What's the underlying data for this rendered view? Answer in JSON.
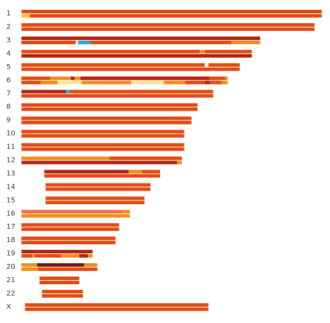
{
  "chart_data": {
    "type": "bar",
    "title": "",
    "xlabel": "",
    "ylabel": "",
    "grid": false,
    "legend": "none",
    "units": "Mb",
    "colors": {
      "orange_red": "#e04a0f",
      "dark_red": "#b3200e",
      "orange": "#f28c1a",
      "yellow": "#f7c430",
      "pale_yellow": "#f8e49a",
      "blue": "#2aa6de",
      "maroon": "#7a1208",
      "salmon": "#f26a4a"
    },
    "chromosomes": [
      {
        "label": "1",
        "haplotypes": [
          [
            {
              "start": 0,
              "end": 249,
              "color": "orange_red"
            }
          ],
          [
            {
              "start": 0,
              "end": 7,
              "color": "yellow"
            },
            {
              "start": 7,
              "end": 249,
              "color": "orange_red"
            }
          ]
        ]
      },
      {
        "label": "2",
        "haplotypes": [
          [
            {
              "start": 0,
              "end": 243,
              "color": "orange_red"
            }
          ],
          [
            {
              "start": 0,
              "end": 243,
              "color": "orange_red"
            }
          ]
        ]
      },
      {
        "label": "3",
        "haplotypes": [
          [
            {
              "start": 0,
              "end": 198,
              "color": "dark_red"
            }
          ],
          [
            {
              "start": 0,
              "end": 45,
              "color": "orange_red"
            },
            {
              "start": 46,
              "end": 47,
              "color": "pale_yellow"
            },
            {
              "start": 47,
              "end": 57,
              "color": "blue"
            },
            {
              "start": 57,
              "end": 174,
              "color": "orange_red"
            },
            {
              "start": 174,
              "end": 198,
              "color": "orange"
            }
          ]
        ]
      },
      {
        "label": "4",
        "haplotypes": [
          [
            {
              "start": 0,
              "end": 148,
              "color": "orange_red"
            },
            {
              "start": 148,
              "end": 152,
              "color": "orange"
            },
            {
              "start": 152,
              "end": 191,
              "color": "orange_red"
            }
          ],
          [
            {
              "start": 0,
              "end": 191,
              "color": "dark_red"
            }
          ]
        ]
      },
      {
        "label": "5",
        "haplotypes": [
          [
            {
              "start": 0,
              "end": 152,
              "color": "orange_red"
            },
            {
              "start": 155,
              "end": 181,
              "color": "orange_red"
            }
          ],
          [
            {
              "start": 0,
              "end": 181,
              "color": "orange_red"
            }
          ]
        ]
      },
      {
        "label": "6",
        "haplotypes": [
          [
            {
              "start": 0,
              "end": 24,
              "color": "orange_red"
            },
            {
              "start": 24,
              "end": 41,
              "color": "orange"
            },
            {
              "start": 41,
              "end": 44,
              "color": "dark_red"
            },
            {
              "start": 44,
              "end": 49,
              "color": "orange"
            },
            {
              "start": 49,
              "end": 156,
              "color": "dark_red"
            },
            {
              "start": 156,
              "end": 169,
              "color": "orange_red"
            },
            {
              "start": 169,
              "end": 171,
              "color": "orange"
            }
          ],
          [
            {
              "start": 0,
              "end": 16,
              "color": "orange_red"
            },
            {
              "start": 16,
              "end": 30,
              "color": "orange"
            },
            {
              "start": 30,
              "end": 50,
              "color": "pale_yellow"
            },
            {
              "start": 50,
              "end": 91,
              "color": "orange"
            },
            {
              "start": 91,
              "end": 118,
              "color": "pale_yellow"
            },
            {
              "start": 118,
              "end": 136,
              "color": "orange"
            },
            {
              "start": 136,
              "end": 152,
              "color": "orange_red"
            },
            {
              "start": 152,
              "end": 156,
              "color": "dark_red"
            },
            {
              "start": 156,
              "end": 166,
              "color": "orange_red"
            },
            {
              "start": 166,
              "end": 171,
              "color": "orange"
            }
          ]
        ]
      },
      {
        "label": "7",
        "haplotypes": [
          [
            {
              "start": 0,
              "end": 37,
              "color": "dark_red"
            },
            {
              "start": 37,
              "end": 40,
              "color": "blue"
            },
            {
              "start": 40,
              "end": 159,
              "color": "orange_red"
            }
          ],
          [
            {
              "start": 0,
              "end": 159,
              "color": "orange_red"
            }
          ]
        ]
      },
      {
        "label": "8",
        "haplotypes": [
          [
            {
              "start": 0,
              "end": 146,
              "color": "orange_red"
            }
          ],
          [
            {
              "start": 0,
              "end": 146,
              "color": "orange_red"
            }
          ]
        ]
      },
      {
        "label": "9",
        "haplotypes": [
          [
            {
              "start": 0,
              "end": 141,
              "color": "orange_red"
            }
          ],
          [
            {
              "start": 0,
              "end": 141,
              "color": "orange_red"
            }
          ]
        ]
      },
      {
        "label": "10",
        "haplotypes": [
          [
            {
              "start": 0,
              "end": 135,
              "color": "orange_red"
            }
          ],
          [
            {
              "start": 0,
              "end": 135,
              "color": "orange_red"
            }
          ]
        ]
      },
      {
        "label": "11",
        "haplotypes": [
          [
            {
              "start": 0,
              "end": 135,
              "color": "orange_red"
            }
          ],
          [
            {
              "start": 0,
              "end": 135,
              "color": "orange_red"
            }
          ]
        ]
      },
      {
        "label": "12",
        "haplotypes": [
          [
            {
              "start": 0,
              "end": 73,
              "color": "orange"
            },
            {
              "start": 73,
              "end": 133,
              "color": "orange_red"
            }
          ],
          [
            {
              "start": 0,
              "end": 129,
              "color": "dark_red"
            },
            {
              "start": 129,
              "end": 133,
              "color": "orange"
            }
          ]
        ]
      },
      {
        "label": "13",
        "haplotypes": [
          [
            {
              "start": 19,
              "end": 89,
              "color": "dark_red"
            },
            {
              "start": 89,
              "end": 100,
              "color": "orange"
            },
            {
              "start": 100,
              "end": 115,
              "color": "orange_red"
            }
          ],
          [
            {
              "start": 19,
              "end": 115,
              "color": "orange_red"
            }
          ]
        ]
      },
      {
        "label": "14",
        "haplotypes": [
          [
            {
              "start": 20,
              "end": 107,
              "color": "orange_red"
            }
          ],
          [
            {
              "start": 20,
              "end": 107,
              "color": "orange_red"
            }
          ]
        ]
      },
      {
        "label": "15",
        "haplotypes": [
          [
            {
              "start": 20,
              "end": 102,
              "color": "orange_red"
            }
          ],
          [
            {
              "start": 20,
              "end": 102,
              "color": "orange_red"
            }
          ]
        ]
      },
      {
        "label": "16",
        "haplotypes": [
          [
            {
              "start": 0,
              "end": 84,
              "color": "salmon"
            },
            {
              "start": 84,
              "end": 90,
              "color": "orange"
            }
          ],
          [
            {
              "start": 0,
              "end": 90,
              "color": "orange"
            }
          ]
        ]
      },
      {
        "label": "17",
        "haplotypes": [
          [
            {
              "start": 0,
              "end": 81,
              "color": "orange_red"
            }
          ],
          [
            {
              "start": 0,
              "end": 81,
              "color": "orange_red"
            }
          ]
        ]
      },
      {
        "label": "18",
        "haplotypes": [
          [
            {
              "start": 0,
              "end": 78,
              "color": "orange_red"
            }
          ],
          [
            {
              "start": 0,
              "end": 78,
              "color": "orange_red"
            }
          ]
        ]
      },
      {
        "label": "19",
        "haplotypes": [
          [
            {
              "start": 0,
              "end": 59,
              "color": "dark_red"
            }
          ],
          [
            {
              "start": 0,
              "end": 9,
              "color": "orange_red"
            },
            {
              "start": 9,
              "end": 11,
              "color": "orange"
            },
            {
              "start": 11,
              "end": 33,
              "color": "orange_red"
            },
            {
              "start": 33,
              "end": 48,
              "color": "orange"
            },
            {
              "start": 48,
              "end": 55,
              "color": "dark_red"
            },
            {
              "start": 55,
              "end": 59,
              "color": "orange"
            }
          ]
        ]
      },
      {
        "label": "20",
        "haplotypes": [
          [
            {
              "start": 0,
              "end": 13,
              "color": "orange"
            },
            {
              "start": 13,
              "end": 52,
              "color": "maroon"
            },
            {
              "start": 52,
              "end": 63,
              "color": "orange"
            }
          ],
          [
            {
              "start": 0,
              "end": 14,
              "color": "orange"
            },
            {
              "start": 14,
              "end": 63,
              "color": "orange_red"
            }
          ]
        ]
      },
      {
        "label": "21",
        "haplotypes": [
          [
            {
              "start": 15,
              "end": 48,
              "color": "orange_red"
            }
          ],
          [
            {
              "start": 15,
              "end": 48,
              "color": "orange_red"
            }
          ]
        ]
      },
      {
        "label": "22",
        "haplotypes": [
          [
            {
              "start": 17,
              "end": 51,
              "color": "orange_red"
            }
          ],
          [
            {
              "start": 17,
              "end": 51,
              "color": "orange_red"
            }
          ]
        ]
      },
      {
        "label": "X",
        "haplotypes": [
          [
            {
              "start": 3,
              "end": 155,
              "color": "orange_red"
            }
          ],
          [
            {
              "start": 3,
              "end": 155,
              "color": "orange_red"
            }
          ]
        ]
      }
    ]
  }
}
